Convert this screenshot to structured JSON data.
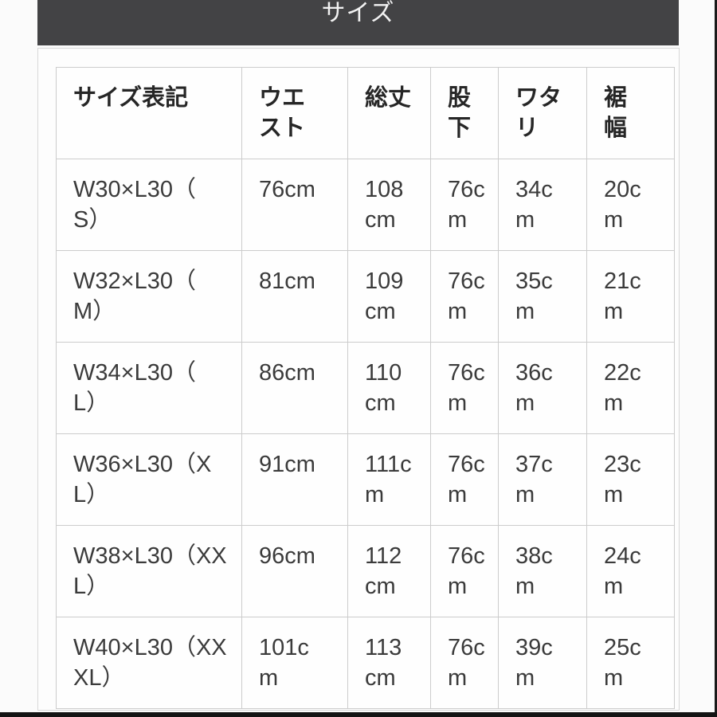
{
  "title_bar": {
    "title": "サイズ"
  },
  "colors": {
    "title_bar_bg": "#434345",
    "title_bar_text": "#f2f2f2",
    "panel_border": "#d9d9d9",
    "table_border": "#cccccc",
    "cell_text": "#3b3b3b",
    "header_text": "#262626",
    "photo_edge": "#141414"
  },
  "size_table": {
    "columns": [
      "サイズ表記",
      "ウエ\nスト",
      "総丈",
      "股\n下",
      "ワタ\nリ",
      "裾\n幅"
    ],
    "rows": [
      [
        "W30×L30（\nS）",
        "76cm",
        "108\ncm",
        "76c\nm",
        "34c\nm",
        "20c\nm"
      ],
      [
        "W32×L30（\nM）",
        "81cm",
        "109\ncm",
        "76c\nm",
        "35c\nm",
        "21c\nm"
      ],
      [
        "W34×L30（\nL）",
        "86cm",
        "110\ncm",
        "76c\nm",
        "36c\nm",
        "22c\nm"
      ],
      [
        "W36×L30（X\nL）",
        "91cm",
        "111c\nm",
        "76c\nm",
        "37c\nm",
        "23c\nm"
      ],
      [
        "W38×L30（XX\nL）",
        "96cm",
        "112\ncm",
        "76c\nm",
        "38c\nm",
        "24c\nm"
      ],
      [
        "W40×L30（XX\nXL）",
        "101c\nm",
        "113\ncm",
        "76c\nm",
        "39c\nm",
        "25c\nm"
      ]
    ]
  }
}
